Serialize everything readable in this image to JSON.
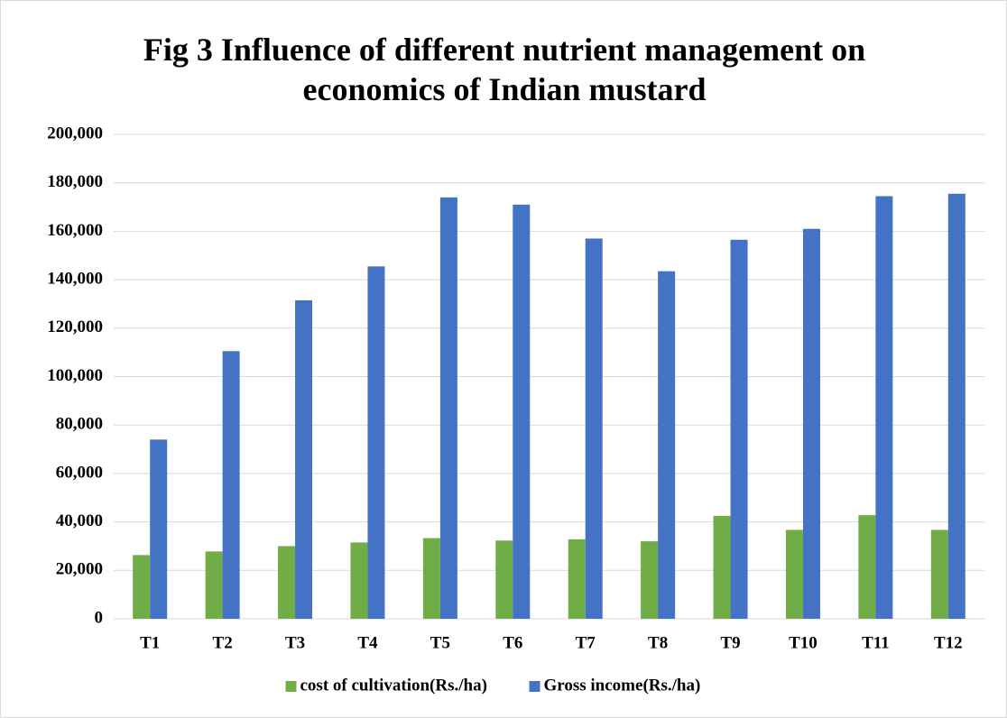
{
  "chart_data": {
    "type": "bar",
    "title": "Fig 3 Influence of different nutrient management on economics of Indian mustard",
    "categories": [
      "T1",
      "T2",
      "T3",
      "T4",
      "T5",
      "T6",
      "T7",
      "T8",
      "T9",
      "T10",
      "T11",
      "T12"
    ],
    "series": [
      {
        "name": "cost of cultivation(Rs./ha)",
        "color": "#70ad47",
        "values": [
          26300,
          27800,
          30000,
          31500,
          33300,
          32300,
          32800,
          32000,
          42500,
          36700,
          42800,
          36700
        ]
      },
      {
        "name": "Gross income(Rs./ha)",
        "color": "#4472c4",
        "values": [
          74000,
          110500,
          131500,
          145500,
          174000,
          171000,
          157000,
          143500,
          156500,
          161000,
          174500,
          175500
        ]
      }
    ],
    "ylim": [
      0,
      200000
    ],
    "yticks": [
      0,
      {
        "value": 20000,
        "label": "20,000"
      },
      {
        "value": 40000,
        "label": "40,000"
      },
      {
        "value": 60000,
        "label": "60,000"
      },
      {
        "value": 80000,
        "label": "80,000"
      },
      {
        "value": 100000,
        "label": "100,000"
      },
      {
        "value": 120000,
        "label": "120,000"
      },
      {
        "value": 140000,
        "label": "140,000"
      },
      {
        "value": 160000,
        "label": "160,000"
      },
      {
        "value": 180000,
        "label": "180,000"
      },
      {
        "value": 200000,
        "label": "200,000"
      }
    ],
    "grid": true,
    "legend": "bottom"
  }
}
